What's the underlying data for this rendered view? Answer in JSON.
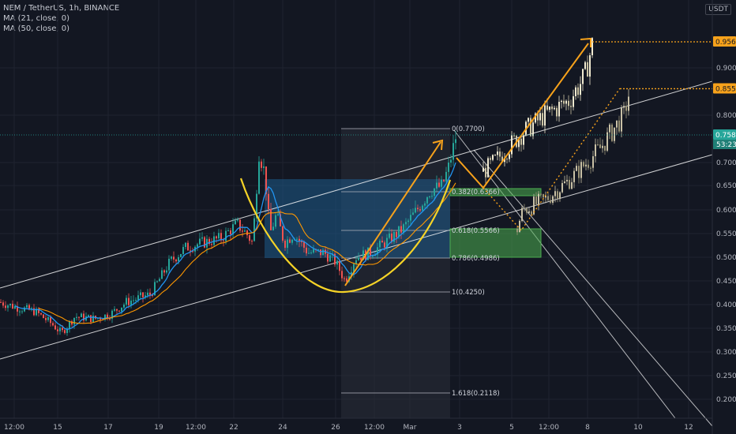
{
  "legend": {
    "title": "NEM / TetherUS, 1h, BINANCE",
    "ma21": "MA (21, close, 0)",
    "ma50": "MA (50, close, 0)"
  },
  "unit_label": "USDT",
  "colors": {
    "background": "#131722",
    "candle_up": "#26a69a",
    "candle_down": "#ef5350",
    "projected_up": "#f1ead0",
    "projected_down": "#9a9376",
    "ma21": "#2196f3",
    "ma50": "#ff9800",
    "channel": "#ffffff",
    "cup": "#f5d327",
    "target": "#f7a21b",
    "zone": "#4caf50",
    "fib_box": "#1e5b8a"
  },
  "chart_data": {
    "type": "candlestick",
    "title": "NEM / TetherUS, 1h, BINANCE",
    "y_unit": "USDT",
    "y_ticks": [
      "0.9000",
      "0.8000",
      "0.7000",
      "0.6500",
      "0.6000",
      "0.5500",
      "0.5000",
      "0.4500",
      "0.4000",
      "0.3500",
      "0.3000",
      "0.2500",
      "0.2000"
    ],
    "x_ticks": [
      "12:00",
      "15",
      "17",
      "19",
      "12:00",
      "22",
      "24",
      "26",
      "12:00",
      "Mar",
      "3",
      "5",
      "12:00",
      "8",
      "10",
      "12"
    ],
    "price_labels": {
      "target_1": "0.9564",
      "target_2": "0.8559",
      "current": "0.7582",
      "countdown": "53:23"
    },
    "fibonacci": [
      {
        "label": "0(0.7700)",
        "value": 0.77
      },
      {
        "label": "0.382(0.6366)",
        "value": 0.6366
      },
      {
        "label": "0.618(0.5566)",
        "value": 0.5566
      },
      {
        "label": "0.786(0.4986)",
        "value": 0.4986
      },
      {
        "label": "1(0.4250)",
        "value": 0.425
      },
      {
        "label": "1.618(0.2118)",
        "value": 0.2118
      }
    ],
    "indicators": [
      "MA (21, close, 0)",
      "MA (50, close, 0)"
    ],
    "annotations": [
      "cup pattern",
      "ascending channel",
      "projected price path",
      "support zones"
    ]
  }
}
